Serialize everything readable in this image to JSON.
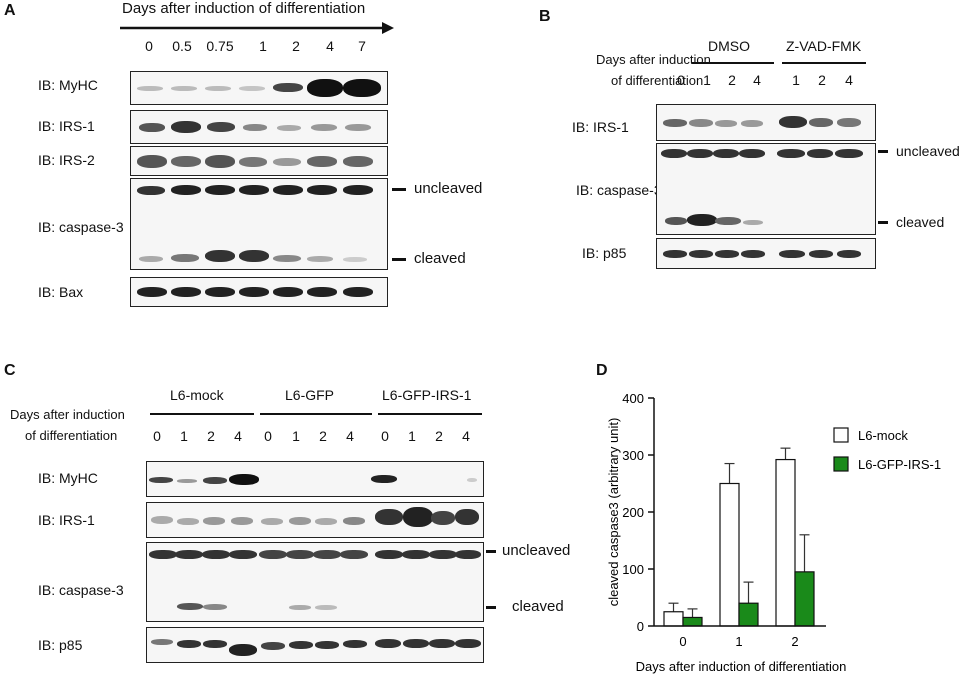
{
  "panel_a": {
    "letter": "A",
    "header": "Days after induction of differentiation",
    "lanes": [
      "0",
      "0.5",
      "0.75",
      "1",
      "2",
      "4",
      "7"
    ],
    "blots": [
      "IB: MyHC",
      "IB: IRS-1",
      "IB: IRS-2",
      "IB: caspase-3",
      "IB: Bax"
    ],
    "marker_uncleaved": "uncleaved",
    "marker_cleaved": "cleaved"
  },
  "panel_b": {
    "letter": "B",
    "header_line1": "Days after induction",
    "header_line2": "of differentiation",
    "group_dmso": "DMSO",
    "group_zvad": "Z-VAD-FMK",
    "lanes": [
      "0",
      "1",
      "2",
      "4",
      "1",
      "2",
      "4"
    ],
    "blots": [
      "IB: IRS-1",
      "IB: caspase-3",
      "IB: p85"
    ],
    "marker_uncleaved": "uncleaved",
    "marker_cleaved": "cleaved"
  },
  "panel_c": {
    "letter": "C",
    "header_line1": "Days after induction",
    "header_line2": "of  differentiation",
    "groups": [
      "L6-mock",
      "L6-GFP",
      "L6-GFP-IRS-1"
    ],
    "lanes": [
      "0",
      "1",
      "2",
      "4",
      "0",
      "1",
      "2",
      "4",
      "0",
      "1",
      "2",
      "4"
    ],
    "blots": [
      "IB: MyHC",
      "IB: IRS-1",
      "IB: caspase-3",
      "IB: p85"
    ],
    "marker_uncleaved": "uncleaved",
    "marker_cleaved": "cleaved"
  },
  "panel_d": {
    "letter": "D",
    "chart_data": {
      "type": "bar",
      "categories": [
        "0",
        "1",
        "2"
      ],
      "series": [
        {
          "name": "L6-mock",
          "values": [
            25,
            250,
            292
          ],
          "errors": [
            15,
            35,
            20
          ],
          "color": "#ffffff"
        },
        {
          "name": "L6-GFP-IRS-1",
          "values": [
            15,
            40,
            95
          ],
          "errors": [
            15,
            37,
            65
          ],
          "color": "#1a8a1a"
        }
      ],
      "ylabel": "cleaved caspase3 (arbitrary unit)",
      "xlabel": "Days after induction of differentiation",
      "ylim": [
        0,
        400
      ],
      "yticks": [
        "0",
        "100",
        "200",
        "300",
        "400"
      ],
      "legend": "right"
    }
  }
}
